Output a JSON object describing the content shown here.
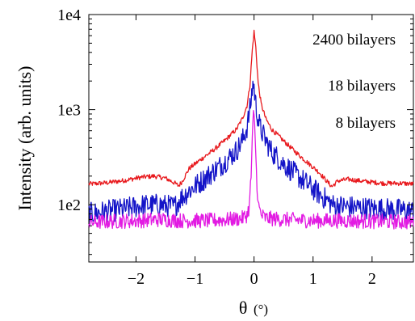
{
  "chart_data": {
    "type": "line",
    "xlabel_symbol": "θ",
    "xlabel_unit": "(°)",
    "ylabel": "Intensity (arb. units)",
    "xlim": [
      -2.8,
      2.7
    ],
    "ylim": [
      25,
      10000
    ],
    "y_scale": "log",
    "grid": false,
    "x_ticks": [
      {
        "value": -2,
        "label": "−2"
      },
      {
        "value": -1,
        "label": "−1"
      },
      {
        "value": 0,
        "label": "0"
      },
      {
        "value": 1,
        "label": "1"
      },
      {
        "value": 2,
        "label": "2"
      }
    ],
    "y_ticks": [
      {
        "value": 100,
        "label": "1e2"
      },
      {
        "value": 1000,
        "label": "1e3"
      },
      {
        "value": 10000,
        "label": "1e4"
      }
    ],
    "series": [
      {
        "name": "2400 bilayers",
        "color": "#e8191d",
        "noise": 0.025,
        "points": [
          [
            -2.8,
            165
          ],
          [
            -2.5,
            170
          ],
          [
            -2.2,
            180
          ],
          [
            -1.9,
            195
          ],
          [
            -1.7,
            200
          ],
          [
            -1.5,
            190
          ],
          [
            -1.35,
            170
          ],
          [
            -1.28,
            158
          ],
          [
            -1.22,
            175
          ],
          [
            -1.1,
            240
          ],
          [
            -0.9,
            300
          ],
          [
            -0.7,
            370
          ],
          [
            -0.5,
            470
          ],
          [
            -0.3,
            620
          ],
          [
            -0.2,
            800
          ],
          [
            -0.12,
            1100
          ],
          [
            -0.07,
            1800
          ],
          [
            -0.03,
            4200
          ],
          [
            0.0,
            6600
          ],
          [
            0.03,
            4500
          ],
          [
            0.07,
            1900
          ],
          [
            0.12,
            1150
          ],
          [
            0.2,
            800
          ],
          [
            0.3,
            620
          ],
          [
            0.5,
            470
          ],
          [
            0.7,
            360
          ],
          [
            0.9,
            280
          ],
          [
            1.1,
            220
          ],
          [
            1.25,
            172
          ],
          [
            1.32,
            155
          ],
          [
            1.42,
            178
          ],
          [
            1.6,
            185
          ],
          [
            1.9,
            175
          ],
          [
            2.2,
            168
          ],
          [
            2.5,
            168
          ],
          [
            2.7,
            165
          ]
        ]
      },
      {
        "name": "18 bilayers",
        "color": "#1414c8",
        "noise": 0.12,
        "points": [
          [
            -2.8,
            80
          ],
          [
            -2.5,
            85
          ],
          [
            -2.2,
            90
          ],
          [
            -1.9,
            98
          ],
          [
            -1.6,
            100
          ],
          [
            -1.35,
            95
          ],
          [
            -1.25,
            115
          ],
          [
            -1.1,
            140
          ],
          [
            -0.9,
            175
          ],
          [
            -0.7,
            220
          ],
          [
            -0.5,
            280
          ],
          [
            -0.3,
            370
          ],
          [
            -0.2,
            470
          ],
          [
            -0.12,
            650
          ],
          [
            -0.06,
            1100
          ],
          [
            -0.02,
            1900
          ],
          [
            0.0,
            1700
          ],
          [
            0.04,
            1000
          ],
          [
            0.1,
            650
          ],
          [
            0.2,
            470
          ],
          [
            0.3,
            360
          ],
          [
            0.5,
            270
          ],
          [
            0.7,
            210
          ],
          [
            0.9,
            165
          ],
          [
            1.1,
            130
          ],
          [
            1.25,
            110
          ],
          [
            1.35,
            98
          ],
          [
            1.6,
            95
          ],
          [
            1.9,
            92
          ],
          [
            2.2,
            90
          ],
          [
            2.5,
            88
          ],
          [
            2.7,
            85
          ]
        ]
      },
      {
        "name": "8 bilayers",
        "color": "#e21be2",
        "noise": 0.08,
        "points": [
          [
            -2.8,
            65
          ],
          [
            -2.4,
            67
          ],
          [
            -2.0,
            68
          ],
          [
            -1.6,
            70
          ],
          [
            -1.2,
            68
          ],
          [
            -0.8,
            68
          ],
          [
            -0.4,
            70
          ],
          [
            -0.2,
            72
          ],
          [
            -0.12,
            78
          ],
          [
            -0.08,
            95
          ],
          [
            -0.05,
            200
          ],
          [
            -0.03,
            500
          ],
          [
            -0.01,
            850
          ],
          [
            0.0,
            820
          ],
          [
            0.02,
            500
          ],
          [
            0.04,
            220
          ],
          [
            0.07,
            100
          ],
          [
            0.12,
            78
          ],
          [
            0.2,
            72
          ],
          [
            0.5,
            70
          ],
          [
            1.0,
            68
          ],
          [
            1.5,
            68
          ],
          [
            2.0,
            67
          ],
          [
            2.5,
            66
          ],
          [
            2.7,
            66
          ]
        ]
      }
    ]
  }
}
